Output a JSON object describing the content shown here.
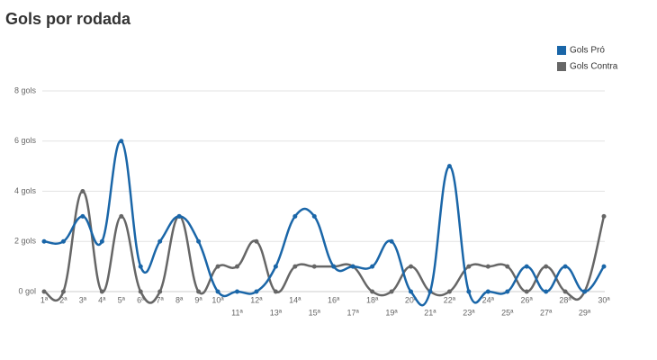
{
  "chart_data": {
    "type": "line",
    "title": "Gols por rodada",
    "categories": [
      "1ª",
      "2ª",
      "3ª",
      "4ª",
      "5ª",
      "6ª",
      "7ª",
      "8ª",
      "9ª",
      "10ª",
      "11ª",
      "12ª",
      "13ª",
      "14ª",
      "15ª",
      "16ª",
      "17ª",
      "18ª",
      "19ª",
      "20ª",
      "21ª",
      "22ª",
      "23ª",
      "24ª",
      "25ª",
      "26ª",
      "27ª",
      "28ª",
      "29ª",
      "30ª"
    ],
    "series": [
      {
        "name": "Gols Pró",
        "color": "#1a66a8",
        "values": [
          2,
          2,
          3,
          2,
          6,
          1,
          2,
          3,
          2,
          0,
          0,
          0,
          1,
          3,
          3,
          1,
          1,
          1,
          2,
          0,
          0,
          5,
          0,
          0,
          0,
          1,
          0,
          1,
          0,
          1
        ]
      },
      {
        "name": "Gols Contra",
        "color": "#666666",
        "values": [
          0,
          0,
          4,
          0,
          3,
          0,
          0,
          3,
          0,
          1,
          1,
          2,
          0,
          1,
          1,
          1,
          1,
          0,
          0,
          1,
          0,
          0,
          1,
          1,
          1,
          0,
          1,
          0,
          0,
          3
        ]
      }
    ],
    "ylim": [
      0,
      8
    ],
    "yticks": [
      {
        "value": 0,
        "label": "0 gol"
      },
      {
        "value": 2,
        "label": "2 gols"
      },
      {
        "value": 4,
        "label": "4 gols"
      },
      {
        "value": 6,
        "label": "6 gols"
      },
      {
        "value": 8,
        "label": "8 gols"
      }
    ],
    "grid": true,
    "legend": "top-right"
  }
}
